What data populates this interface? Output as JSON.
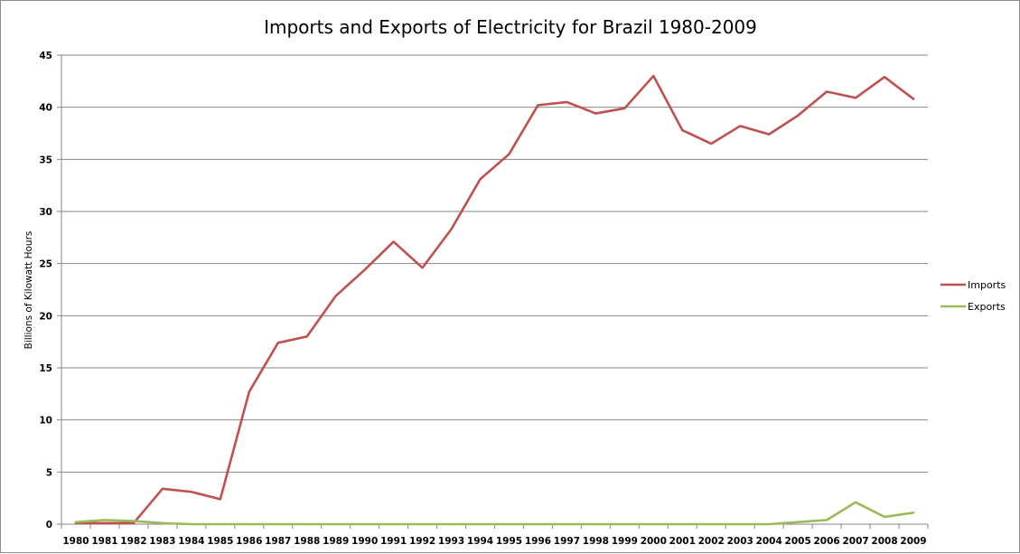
{
  "chart_data": {
    "type": "line",
    "title": "Imports and Exports of Electricity for Brazil 1980-2009",
    "xlabel": "",
    "ylabel": "Billions of Kilowatt Hours",
    "ylim": [
      0,
      45
    ],
    "yticks": [
      0,
      5,
      10,
      15,
      20,
      25,
      30,
      35,
      40,
      45
    ],
    "grid": true,
    "legend_position": "right",
    "categories": [
      "1980",
      "1981",
      "1982",
      "1983",
      "1984",
      "1985",
      "1986",
      "1987",
      "1988",
      "1989",
      "1990",
      "1991",
      "1992",
      "1993",
      "1994",
      "1995",
      "1996",
      "1997",
      "1998",
      "1999",
      "2000",
      "2001",
      "2002",
      "2003",
      "2004",
      "2005",
      "2006",
      "2007",
      "2008",
      "2009"
    ],
    "series": [
      {
        "name": "Imports",
        "color": "#c0504d",
        "values": [
          0.1,
          0.1,
          0.1,
          3.4,
          3.1,
          2.4,
          12.7,
          17.4,
          18.0,
          21.9,
          24.4,
          27.1,
          24.6,
          28.3,
          33.1,
          35.5,
          40.2,
          40.5,
          39.4,
          39.9,
          43.0,
          37.8,
          36.5,
          38.2,
          37.4,
          39.2,
          41.5,
          40.9,
          42.9,
          40.8
        ]
      },
      {
        "name": "Exports",
        "color": "#9bbb59",
        "values": [
          0.2,
          0.4,
          0.3,
          0.1,
          0.0,
          0.0,
          0.0,
          0.0,
          0.0,
          0.0,
          0.0,
          0.0,
          0.0,
          0.0,
          0.0,
          0.0,
          0.0,
          0.0,
          0.0,
          0.0,
          0.0,
          0.0,
          0.0,
          0.0,
          0.0,
          0.2,
          0.4,
          2.1,
          0.7,
          1.1
        ]
      }
    ]
  }
}
